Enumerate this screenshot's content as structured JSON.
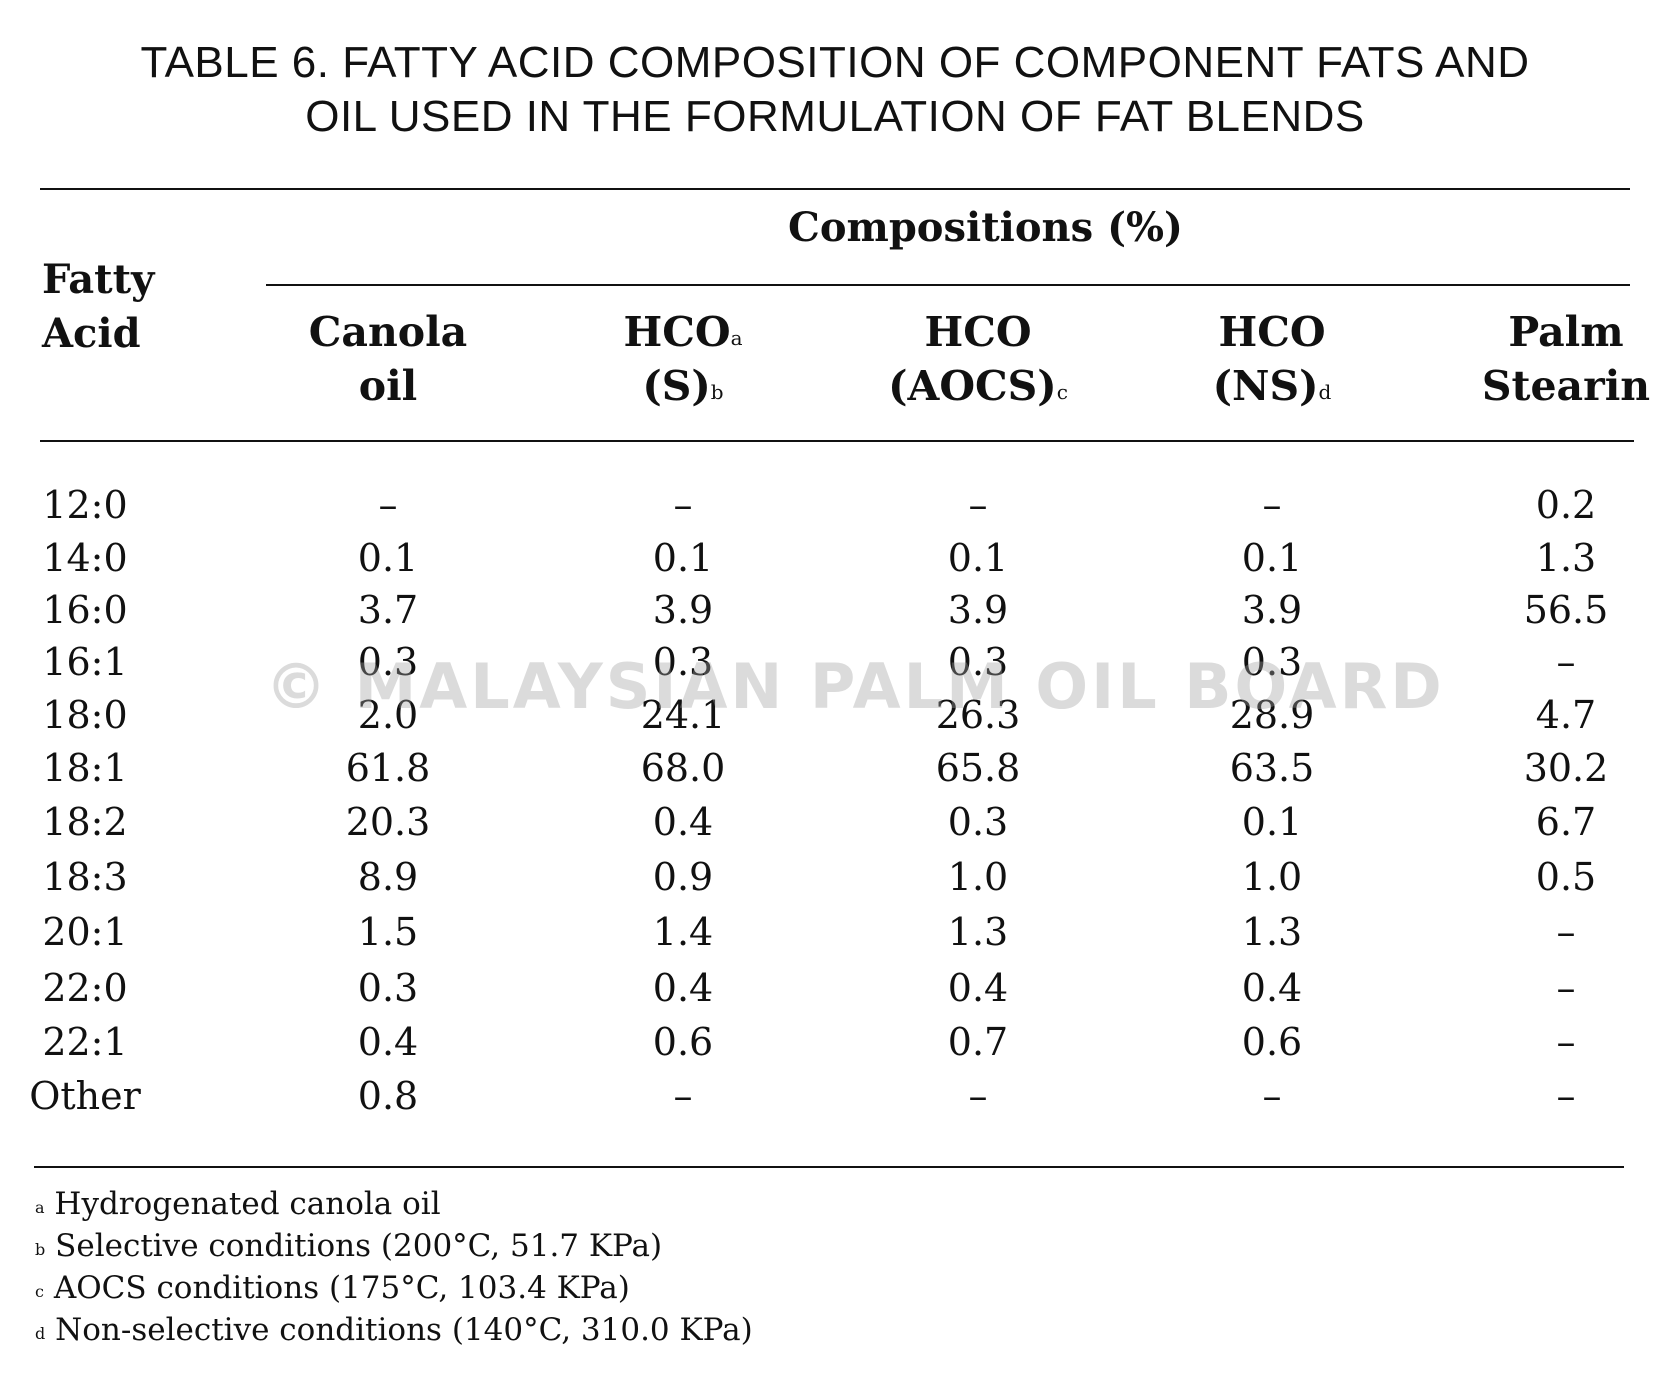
{
  "title": {
    "line1": "TABLE 6.  FATTY ACID COMPOSITION OF COMPONENT FATS AND",
    "line2": "OIL USED IN THE FORMULATION OF FAT BLENDS"
  },
  "header": {
    "row_label_line1": "Fatty",
    "row_label_line2": "Acid",
    "group_label": "Compositions (%)",
    "columns": [
      {
        "line1": "Canola",
        "line1_sup": "",
        "line2": "oil",
        "line2_sup": ""
      },
      {
        "line1": "HCO",
        "line1_sup": "a",
        "line2": "(S)",
        "line2_sup": "b"
      },
      {
        "line1": "HCO",
        "line1_sup": "",
        "line2": "(AOCS)",
        "line2_sup": "c"
      },
      {
        "line1": "HCO",
        "line1_sup": "",
        "line2": "(NS)",
        "line2_sup": "d"
      },
      {
        "line1": "Palm",
        "line1_sup": "",
        "line2": "Stearin",
        "line2_sup": ""
      }
    ]
  },
  "rows": [
    {
      "acid": "12:0",
      "values": [
        "–",
        "–",
        "–",
        "–",
        "0.2"
      ]
    },
    {
      "acid": "14:0",
      "values": [
        "0.1",
        "0.1",
        "0.1",
        "0.1",
        "1.3"
      ]
    },
    {
      "acid": "16:0",
      "values": [
        "3.7",
        "3.9",
        "3.9",
        "3.9",
        "56.5"
      ]
    },
    {
      "acid": "16:1",
      "values": [
        "0.3",
        "0.3",
        "0.3",
        "0.3",
        "–"
      ]
    },
    {
      "acid": "18:0",
      "values": [
        "2.0",
        "24.1",
        "26.3",
        "28.9",
        "4.7"
      ]
    },
    {
      "acid": "18:1",
      "values": [
        "61.8",
        "68.0",
        "65.8",
        "63.5",
        "30.2"
      ]
    },
    {
      "acid": "18:2",
      "values": [
        "20.3",
        "0.4",
        "0.3",
        "0.1",
        "6.7"
      ]
    },
    {
      "acid": "18:3",
      "values": [
        "8.9",
        "0.9",
        "1.0",
        "1.0",
        "0.5"
      ]
    },
    {
      "acid": "20:1",
      "values": [
        "1.5",
        "1.4",
        "1.3",
        "1.3",
        "–"
      ]
    },
    {
      "acid": "22:0",
      "values": [
        "0.3",
        "0.4",
        "0.4",
        "0.4",
        "–"
      ]
    },
    {
      "acid": "22:1",
      "values": [
        "0.4",
        "0.6",
        "0.7",
        "0.6",
        "–"
      ]
    },
    {
      "acid": "Other",
      "values": [
        "0.8",
        "–",
        "–",
        "–",
        "–"
      ]
    }
  ],
  "footnotes": [
    {
      "mark": "a",
      "text": "Hydrogenated canola oil"
    },
    {
      "mark": "b",
      "text": "Selective conditions (200°C, 51.7 KPa)"
    },
    {
      "mark": "c",
      "text": "AOCS conditions (175°C, 103.4 KPa)"
    },
    {
      "mark": "d",
      "text": "Non-selective conditions (140°C, 310.0 KPa)"
    }
  ],
  "watermark": "© MALAYSIAN PALM OIL BOARD"
}
